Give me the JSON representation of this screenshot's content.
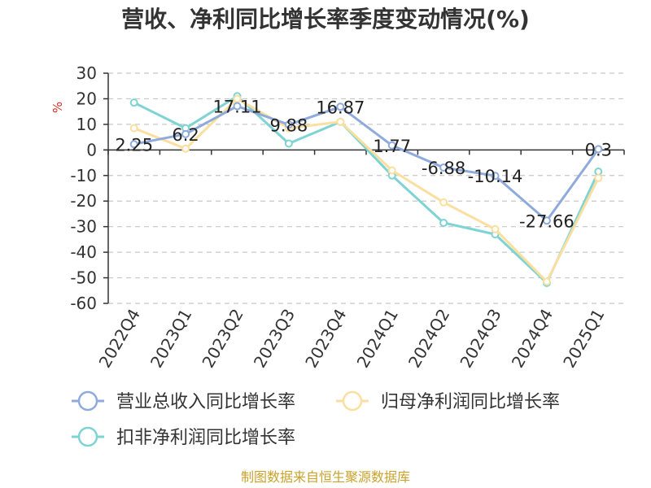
{
  "chart_data": {
    "type": "line",
    "title": "营收、净利同比增长率季度变动情况(%)",
    "ylabel": "%",
    "ylim": [
      -60,
      30
    ],
    "yticks": [
      30,
      20,
      10,
      0,
      -10,
      -20,
      -30,
      -40,
      -50,
      -60
    ],
    "grid": true,
    "legend_position": "bottom",
    "categories": [
      "2022Q4",
      "2023Q1",
      "2023Q2",
      "2023Q3",
      "2023Q4",
      "2024Q1",
      "2024Q2",
      "2024Q3",
      "2024Q4",
      "2025Q1"
    ],
    "series": [
      {
        "name": "营业总收入同比增长率",
        "color": "#8faadc",
        "values": [
          2.25,
          6.2,
          17.11,
          9.88,
          16.87,
          1.77,
          -6.88,
          -10.14,
          -27.66,
          0.3
        ],
        "labels": [
          "2.25",
          "6.2",
          "17.11",
          "9.88",
          "16.87",
          "1.77",
          "-6.88",
          "-10.14",
          "-27.66",
          "0.3"
        ]
      },
      {
        "name": "归母净利润同比增长率",
        "color": "#fbdfa0",
        "values": [
          8.5,
          0.5,
          20,
          8.5,
          11,
          -8,
          -20.5,
          -31,
          -51.5,
          -11
        ]
      },
      {
        "name": "扣非净利润同比增长率",
        "color": "#7fd3d3",
        "values": [
          18.5,
          8.5,
          21,
          2.5,
          11,
          -10,
          -28.5,
          -33,
          -52,
          -8.5
        ]
      }
    ],
    "source": "制图数据来自恒生聚源数据库"
  }
}
